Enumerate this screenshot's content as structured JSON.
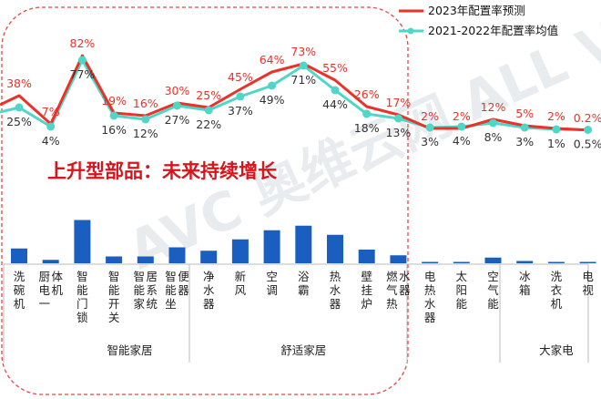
{
  "chart_data": {
    "type": "line+bar",
    "categories": [
      "洗碗机",
      "厨电一体机",
      "智能门锁",
      "智能开关",
      "智能家居系统",
      "智能坐便器",
      "净水器",
      "新风",
      "空调",
      "浴霸",
      "热水器",
      "壁挂炉",
      "燃气热水器",
      "电热水器",
      "太阳能",
      "空气能",
      "冰箱",
      "洗衣机",
      "电视"
    ],
    "series": [
      {
        "name": "2023年配置率预测",
        "color": "#e8322a",
        "values": [
          38,
          7,
          82,
          19,
          16,
          30,
          25,
          45,
          64,
          73,
          55,
          26,
          17,
          2,
          2,
          12,
          5,
          2,
          0.2
        ],
        "labels": [
          "38%",
          "7%",
          "82%",
          "19%",
          "16%",
          "30%",
          "25%",
          "45%",
          "64%",
          "73%",
          "55%",
          "26%",
          "17%",
          "2%",
          "2%",
          "12%",
          "5%",
          "2%",
          "0.2%"
        ]
      },
      {
        "name": "2021-2022年配置率均值",
        "color": "#4fd6c8",
        "values": [
          25,
          4,
          77,
          16,
          12,
          27,
          22,
          37,
          49,
          71,
          44,
          18,
          13,
          3,
          4,
          8,
          3,
          1,
          0.5
        ],
        "labels": [
          "25%",
          "4%",
          "77%",
          "16%",
          "12%",
          "27%",
          "22%",
          "37%",
          "49%",
          "71%",
          "44%",
          "18%",
          "13%",
          "3%",
          "4%",
          "8%",
          "3%",
          "1%",
          "0.5%"
        ]
      }
    ],
    "bars": {
      "color": "#1a5fc0",
      "values": [
        13,
        3,
        38,
        6,
        6,
        14,
        11,
        21,
        29,
        33,
        25,
        12,
        7,
        1,
        1,
        5,
        2,
        1,
        1
      ]
    },
    "groups": [
      {
        "label": "智能家居",
        "start": 2,
        "end": 5
      },
      {
        "label": "舒适家居",
        "start": 6,
        "end": 12
      },
      {
        "label": "大家电",
        "start": 16,
        "end": 18
      }
    ],
    "annotation": "上升型部品：未来持续增长",
    "legend_position": "top-right",
    "watermark": "AVC 奥维云网 ALL VIEW CLOUD"
  }
}
